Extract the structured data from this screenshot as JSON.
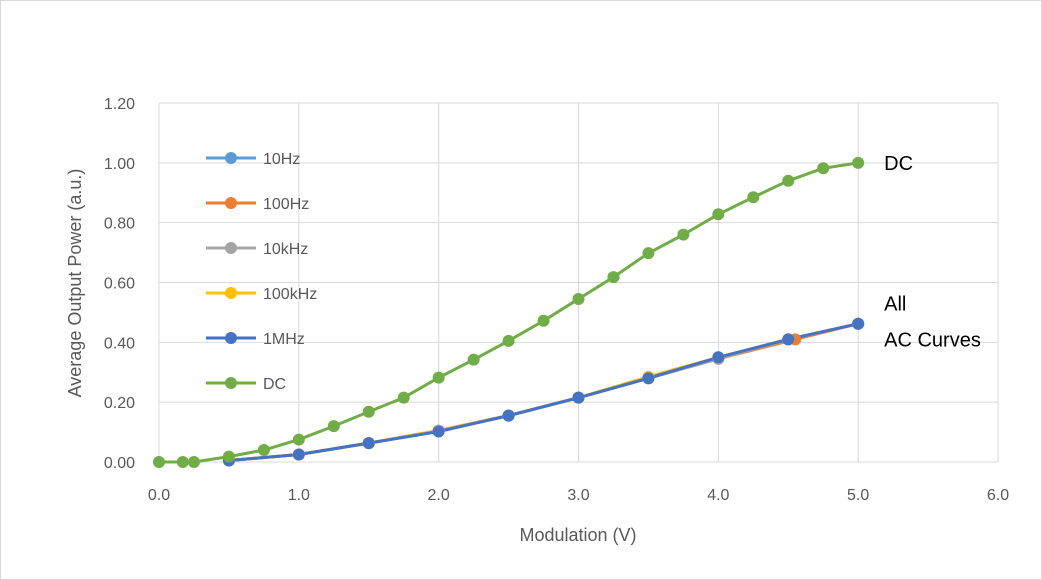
{
  "chart_data": {
    "type": "line",
    "title": "",
    "xlabel": "Modulation (V)",
    "ylabel": "Average Output Power  (a.u.)",
    "xlim": [
      0,
      6
    ],
    "ylim": [
      0,
      1.2
    ],
    "x_ticks": [
      "0.0",
      "1.0",
      "2.0",
      "3.0",
      "4.0",
      "5.0",
      "6.0"
    ],
    "y_ticks": [
      "0.00",
      "0.20",
      "0.40",
      "0.60",
      "0.80",
      "1.00",
      "1.20"
    ],
    "grid": true,
    "legend_position": "upper-left-inside",
    "series": [
      {
        "name": "10Hz",
        "color": "#5B9BD5",
        "x": [
          0.5,
          1.0,
          1.5,
          2.0,
          2.5,
          3.0,
          3.5,
          4.0,
          4.5,
          5.0
        ],
        "y": [
          0.005,
          0.025,
          0.063,
          0.105,
          0.155,
          0.215,
          0.28,
          0.345,
          0.41,
          0.462
        ]
      },
      {
        "name": "100Hz",
        "color": "#ED7D31",
        "x": [
          0.5,
          1.0,
          1.5,
          2.0,
          2.5,
          3.0,
          3.5,
          4.0,
          4.55,
          5.0
        ],
        "y": [
          0.005,
          0.025,
          0.063,
          0.105,
          0.155,
          0.215,
          0.28,
          0.345,
          0.41,
          0.462
        ]
      },
      {
        "name": "10kHz",
        "color": "#A5A5A5",
        "x": [
          0.5,
          1.0,
          1.5,
          2.0,
          2.5,
          3.0,
          3.5,
          4.0,
          4.5,
          5.0
        ],
        "y": [
          0.005,
          0.025,
          0.063,
          0.105,
          0.155,
          0.215,
          0.28,
          0.345,
          0.41,
          0.462
        ]
      },
      {
        "name": "100kHz",
        "color": "#FFC000",
        "x": [
          0.5,
          1.0,
          1.5,
          2.0,
          2.5,
          3.0,
          3.5,
          4.0,
          4.5,
          5.0
        ],
        "y": [
          0.005,
          0.025,
          0.063,
          0.105,
          0.155,
          0.215,
          0.285,
          0.35,
          0.41,
          0.462
        ]
      },
      {
        "name": "1MHz",
        "color": "#4472C4",
        "x": [
          0.5,
          1.0,
          1.5,
          2.0,
          2.5,
          3.0,
          3.5,
          4.0,
          4.5,
          5.0
        ],
        "y": [
          0.005,
          0.025,
          0.063,
          0.102,
          0.155,
          0.215,
          0.28,
          0.35,
          0.41,
          0.462
        ]
      },
      {
        "name": "DC",
        "color": "#70AD47",
        "x": [
          0.0,
          0.17,
          0.25,
          0.5,
          0.75,
          1.0,
          1.25,
          1.5,
          1.75,
          2.0,
          2.25,
          2.5,
          2.75,
          3.0,
          3.25,
          3.5,
          3.75,
          4.0,
          4.25,
          4.5,
          4.75,
          5.0
        ],
        "y": [
          0.0,
          0.0,
          0.0,
          0.018,
          0.04,
          0.075,
          0.12,
          0.168,
          0.215,
          0.282,
          0.342,
          0.405,
          0.472,
          0.545,
          0.618,
          0.698,
          0.76,
          0.828,
          0.885,
          0.94,
          0.982,
          1.0
        ]
      }
    ],
    "annotations": [
      {
        "text": "DC",
        "x": 5.2,
        "y": 1.0
      },
      {
        "text": "All",
        "x": 5.2,
        "y": 0.53
      },
      {
        "text": "AC Curves",
        "x": 5.2,
        "y": 0.41
      }
    ]
  }
}
